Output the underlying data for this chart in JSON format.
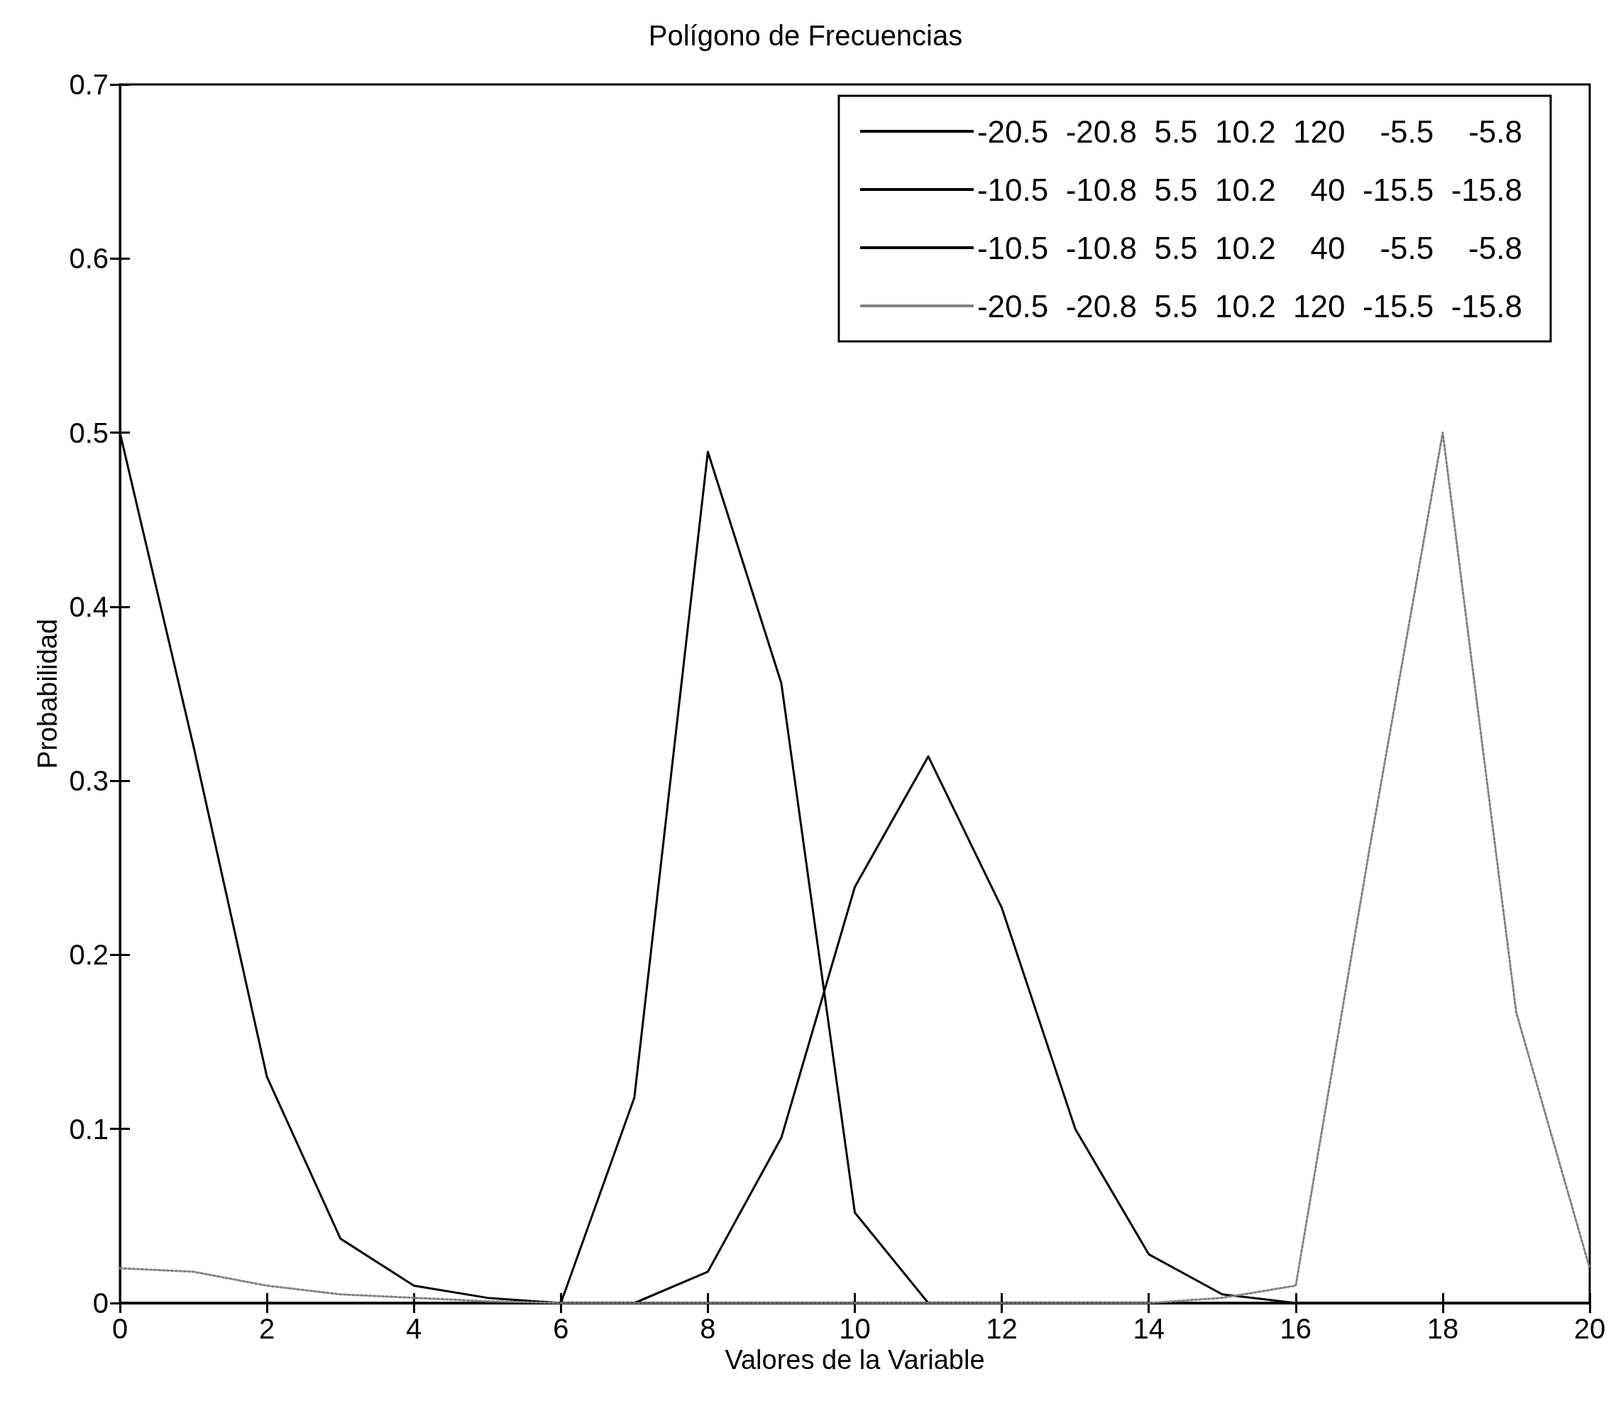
{
  "chart_data": {
    "type": "line",
    "title": "Polígono de Frecuencias",
    "xlabel": "Valores de la Variable",
    "ylabel": "Probabilidad",
    "x": [
      0,
      1,
      2,
      3,
      4,
      5,
      6,
      7,
      8,
      9,
      10,
      11,
      12,
      13,
      14,
      15,
      16,
      17,
      18,
      19,
      20
    ],
    "series": [
      {
        "name": "-20.5  -20.8  5.5  10.2  120    -5.5    -5.8",
        "color": "#000000",
        "line_style": "solid",
        "values": [
          0.5,
          0.32,
          0.13,
          0.037,
          0.01,
          0.003,
          0,
          0,
          0,
          0,
          0,
          0,
          0,
          0,
          0,
          0,
          0,
          0,
          0,
          0,
          0
        ]
      },
      {
        "name": "-10.5  -10.8  5.5  10.2    40  -15.5  -15.8",
        "color": "#000000",
        "line_style": "solid",
        "values": [
          0,
          0,
          0,
          0,
          0,
          0,
          0,
          0.118,
          0.489,
          0.356,
          0.052,
          0,
          0,
          0,
          0,
          0,
          0,
          0,
          0,
          0,
          0
        ]
      },
      {
        "name": "-10.5  -10.8  5.5  10.2    40    -5.5    -5.8",
        "color": "#000000",
        "line_style": "solid",
        "values": [
          0,
          0,
          0,
          0,
          0,
          0,
          0,
          0,
          0.018,
          0.095,
          0.239,
          0.314,
          0.227,
          0.1,
          0.028,
          0.005,
          0,
          0,
          0,
          0,
          0
        ]
      },
      {
        "name": "-20.5  -20.8  5.5  10.2  120  -15.5  -15.8",
        "color": "#808080",
        "line_style": "dotted",
        "values": [
          0.02,
          0.018,
          0.01,
          0.005,
          0.003,
          0.001,
          0,
          0,
          0,
          0,
          0,
          0,
          0,
          0,
          0,
          0.003,
          0.01,
          0.26,
          0.5,
          0.167,
          0.02
        ]
      }
    ],
    "xlim": [
      0,
      20
    ],
    "xticks": [
      0,
      2,
      4,
      6,
      8,
      10,
      12,
      14,
      16,
      18,
      20
    ],
    "ylim": [
      0,
      0.7
    ],
    "yticks": [
      0,
      0.1,
      0.2,
      0.3,
      0.4,
      0.5,
      0.6,
      0.7
    ],
    "grid": false,
    "legend": "top right",
    "marker": "none"
  }
}
